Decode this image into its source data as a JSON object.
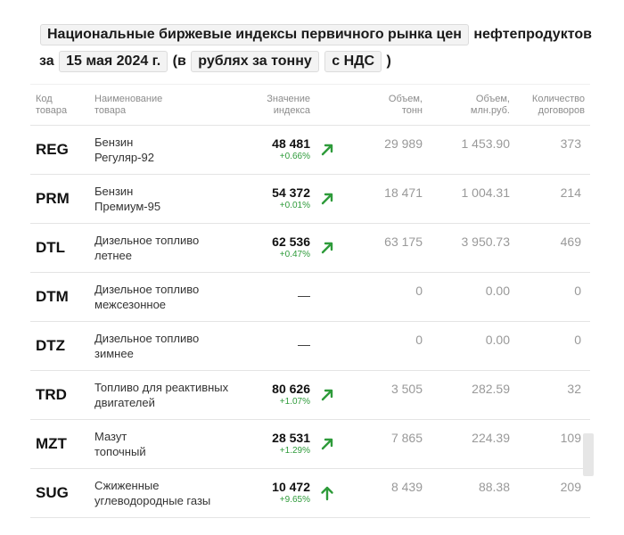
{
  "heading": {
    "title": "Национальные биржевые индексы первичного рынка цен",
    "suffix": "нефтепродуктов",
    "prefix_date": "за",
    "date": "15 мая 2024 г.",
    "paren_open": "(в",
    "unit": "рублях за тонну",
    "vat": "с НДС",
    "paren_close": ")"
  },
  "columns": {
    "code": [
      "Код",
      "товара"
    ],
    "name": [
      "Наименование",
      "товара"
    ],
    "value": [
      "Значение",
      "индекса"
    ],
    "volume_t": [
      "Объем,",
      "тонн"
    ],
    "volume_rub": [
      "Объем,",
      "млн.руб."
    ],
    "contracts": [
      "Количество",
      "договоров"
    ]
  },
  "rows": [
    {
      "code": "REG",
      "name1": "Бензин",
      "name2": "Регуляр-92",
      "value": "48 481",
      "change": "+0.66%",
      "arrow": "up-right",
      "volume_t": "29 989",
      "volume_rub": "1 453.90",
      "contracts": "373"
    },
    {
      "code": "PRM",
      "name1": "Бензин",
      "name2": "Премиум-95",
      "value": "54 372",
      "change": "+0.01%",
      "arrow": "up-right",
      "volume_t": "18 471",
      "volume_rub": "1 004.31",
      "contracts": "214"
    },
    {
      "code": "DTL",
      "name1": "Дизельное топливо",
      "name2": "летнее",
      "value": "62 536",
      "change": "+0.47%",
      "arrow": "up-right",
      "volume_t": "63 175",
      "volume_rub": "3 950.73",
      "contracts": "469"
    },
    {
      "code": "DTM",
      "name1": "Дизельное топливо",
      "name2": "межсезонное",
      "value": "—",
      "change": "",
      "arrow": "",
      "volume_t": "0",
      "volume_rub": "0.00",
      "contracts": "0"
    },
    {
      "code": "DTZ",
      "name1": "Дизельное топливо",
      "name2": "зимнее",
      "value": "—",
      "change": "",
      "arrow": "",
      "volume_t": "0",
      "volume_rub": "0.00",
      "contracts": "0"
    },
    {
      "code": "TRD",
      "name1": "Топливо для реактивных",
      "name2": "двигателей",
      "value": "80 626",
      "change": "+1.07%",
      "arrow": "up-right",
      "volume_t": "3 505",
      "volume_rub": "282.59",
      "contracts": "32"
    },
    {
      "code": "MZT",
      "name1": "Мазут",
      "name2": "топочный",
      "value": "28 531",
      "change": "+1.29%",
      "arrow": "up-right",
      "volume_t": "7 865",
      "volume_rub": "224.39",
      "contracts": "109"
    },
    {
      "code": "SUG",
      "name1": "Сжиженные",
      "name2": "углеводородные газы",
      "value": "10 472",
      "change": "+9.65%",
      "arrow": "up",
      "volume_t": "8 439",
      "volume_rub": "88.38",
      "contracts": "209"
    }
  ],
  "colors": {
    "positive": "#2e9b3a",
    "muted": "#999999"
  }
}
